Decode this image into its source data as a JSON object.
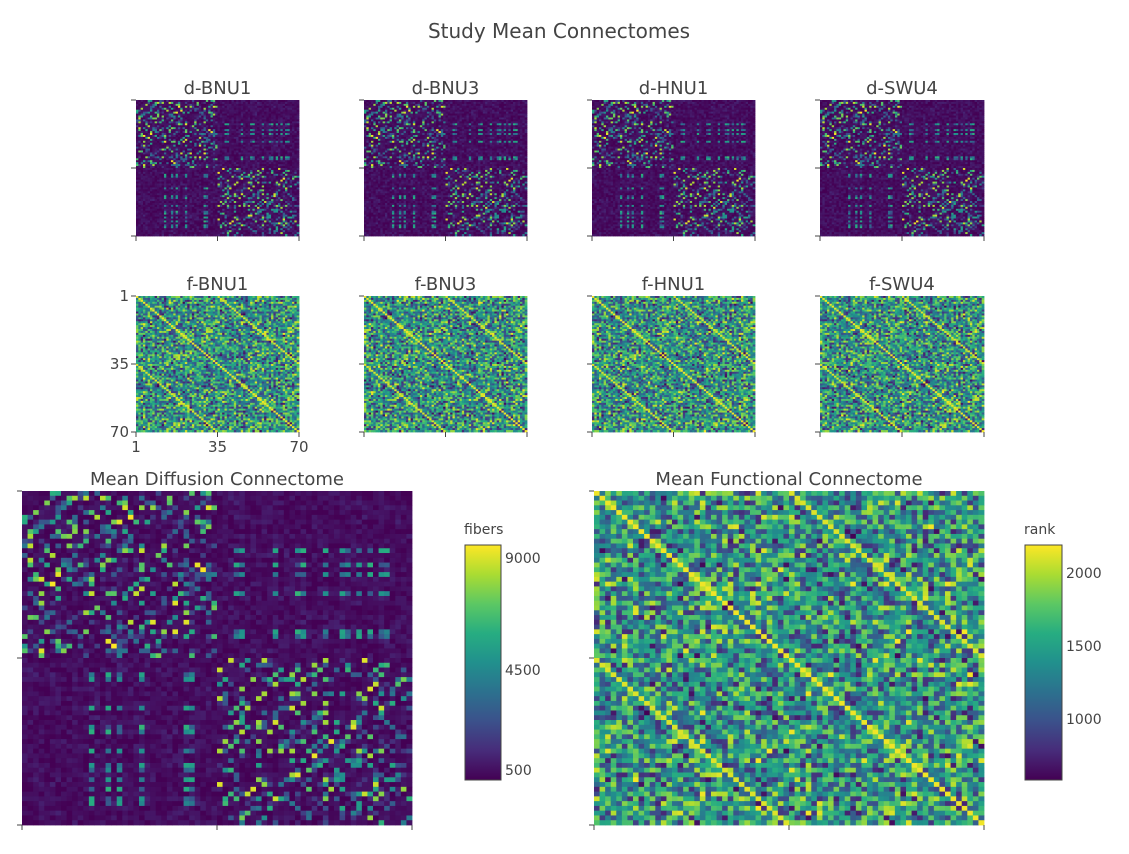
{
  "figure": {
    "title": "Study Mean Connectomes"
  },
  "chart_data": [
    {
      "type": "heatmap",
      "title": "d-BNU1",
      "grid": false
    },
    {
      "type": "heatmap",
      "title": "d-BNU3",
      "grid": false
    },
    {
      "type": "heatmap",
      "title": "d-HNU1",
      "grid": false
    },
    {
      "type": "heatmap",
      "title": "d-SWU4",
      "grid": false
    },
    {
      "type": "heatmap",
      "title": "f-BNU1",
      "grid": false,
      "x_ticks": [
        "1",
        "35",
        "70"
      ],
      "y_ticks": [
        "1",
        "35",
        "70"
      ]
    },
    {
      "type": "heatmap",
      "title": "f-BNU3",
      "grid": false
    },
    {
      "type": "heatmap",
      "title": "f-HNU1",
      "grid": false
    },
    {
      "type": "heatmap",
      "title": "f-SWU4",
      "grid": false
    },
    {
      "type": "heatmap",
      "title": "Mean Diffusion Connectome",
      "grid": false,
      "colorscale": "viridis",
      "colorbar": {
        "title": "fibers",
        "ticks": [
          "9000",
          "4500",
          "500"
        ],
        "range": [
          500,
          9000
        ]
      }
    },
    {
      "type": "heatmap",
      "title": "Mean Functional Connectome",
      "grid": false,
      "colorscale": "viridis",
      "colorbar": {
        "title": "rank",
        "ticks": [
          "2000",
          "1500",
          "1000"
        ],
        "range": [
          600,
          2200
        ]
      }
    }
  ]
}
